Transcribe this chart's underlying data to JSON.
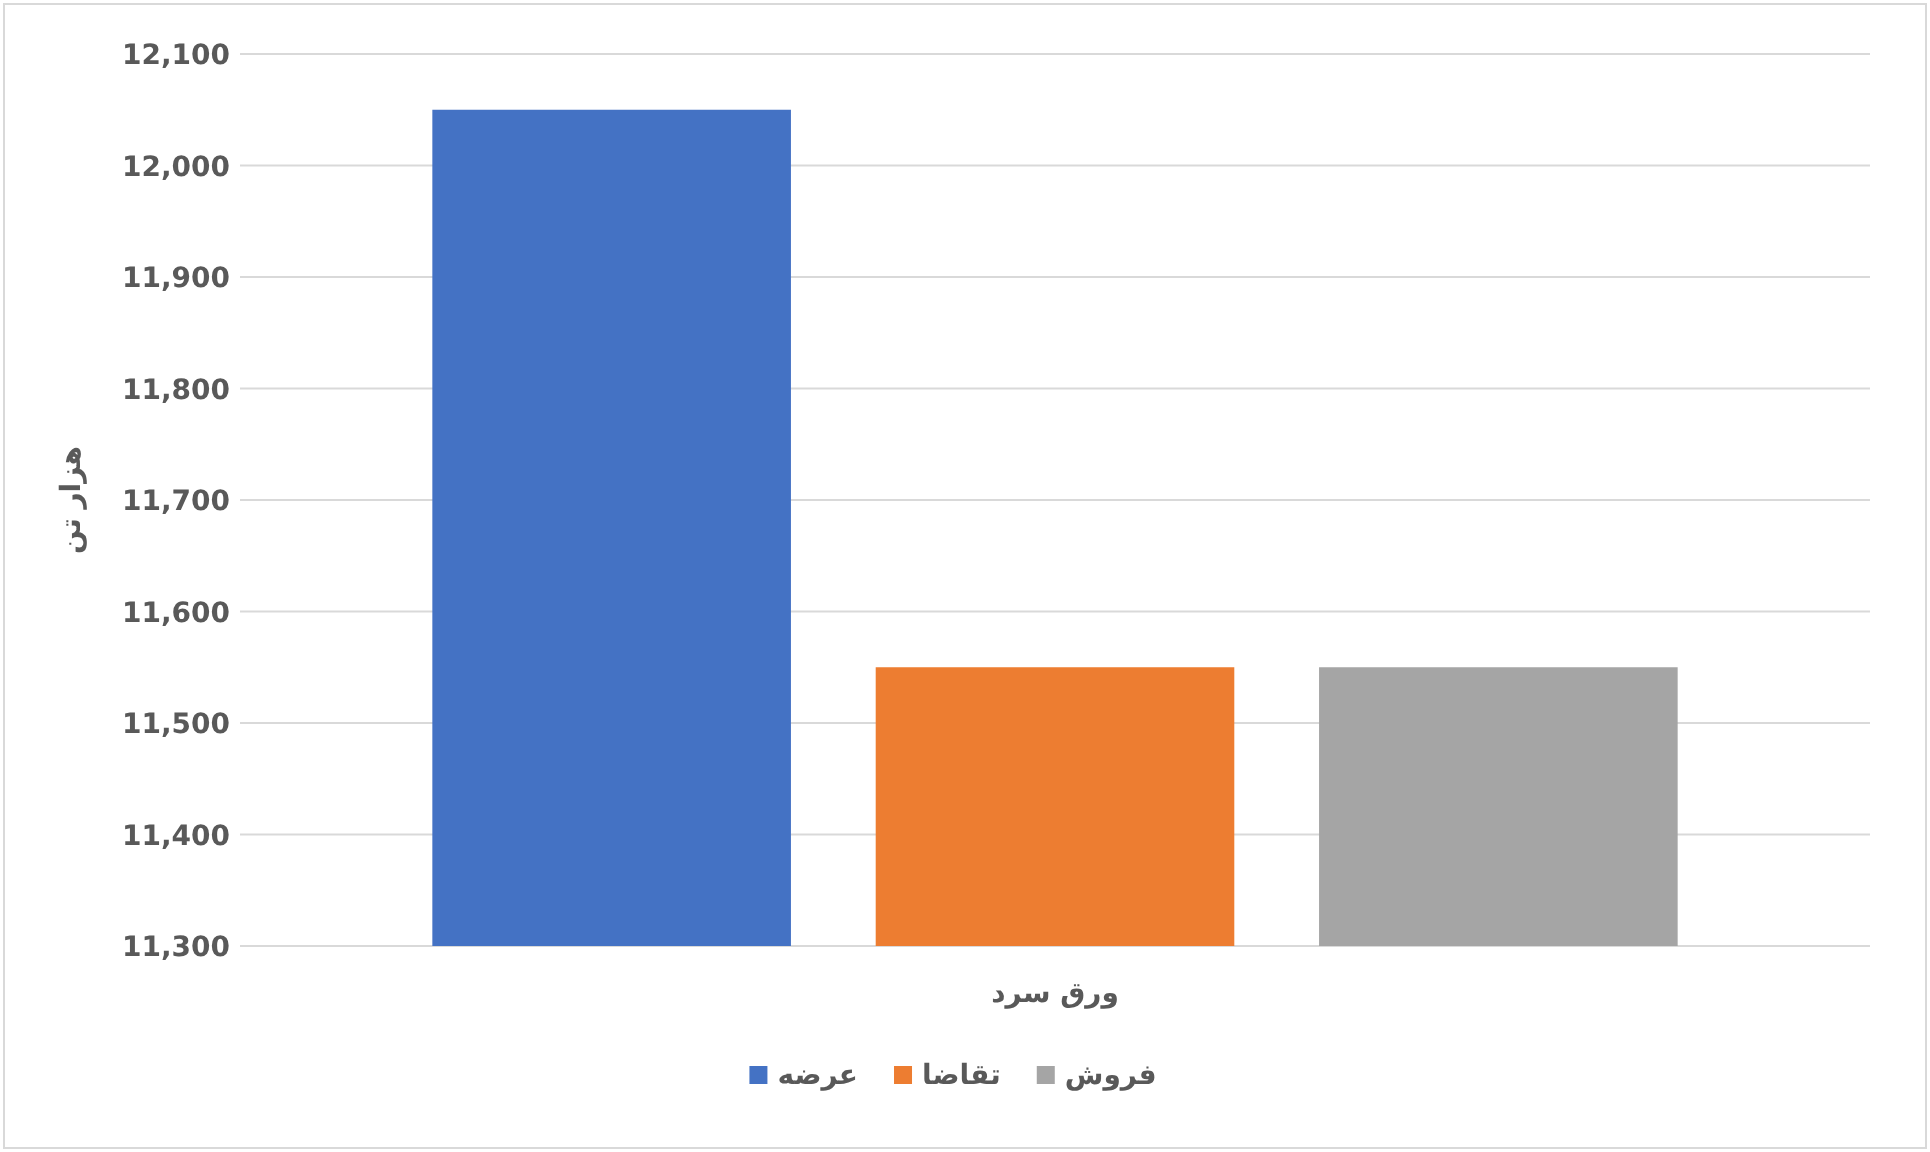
{
  "chart_data": {
    "type": "bar",
    "categories": [
      "ورق سرد"
    ],
    "ylabel": "هزار تن",
    "series": [
      {
        "name": "عرضه",
        "color": "#4472c4",
        "values": [
          12050
        ]
      },
      {
        "name": "تقاضا",
        "color": "#ed7d31",
        "values": [
          11550
        ]
      },
      {
        "name": "فروش",
        "color": "#a5a5a5",
        "values": [
          11550
        ]
      }
    ],
    "ylim": [
      11300,
      12100
    ],
    "yticks": [
      {
        "value": 11300,
        "label": "11,300"
      },
      {
        "value": 11400,
        "label": "11,400"
      },
      {
        "value": 11500,
        "label": "11,500"
      },
      {
        "value": 11600,
        "label": "11,600"
      },
      {
        "value": 11700,
        "label": "11,700"
      },
      {
        "value": 11800,
        "label": "11,800"
      },
      {
        "value": 11900,
        "label": "11,900"
      },
      {
        "value": 12000,
        "label": "12,000"
      },
      {
        "value": 12100,
        "label": "12,100"
      }
    ],
    "grid": "y",
    "legend": "bottom"
  }
}
